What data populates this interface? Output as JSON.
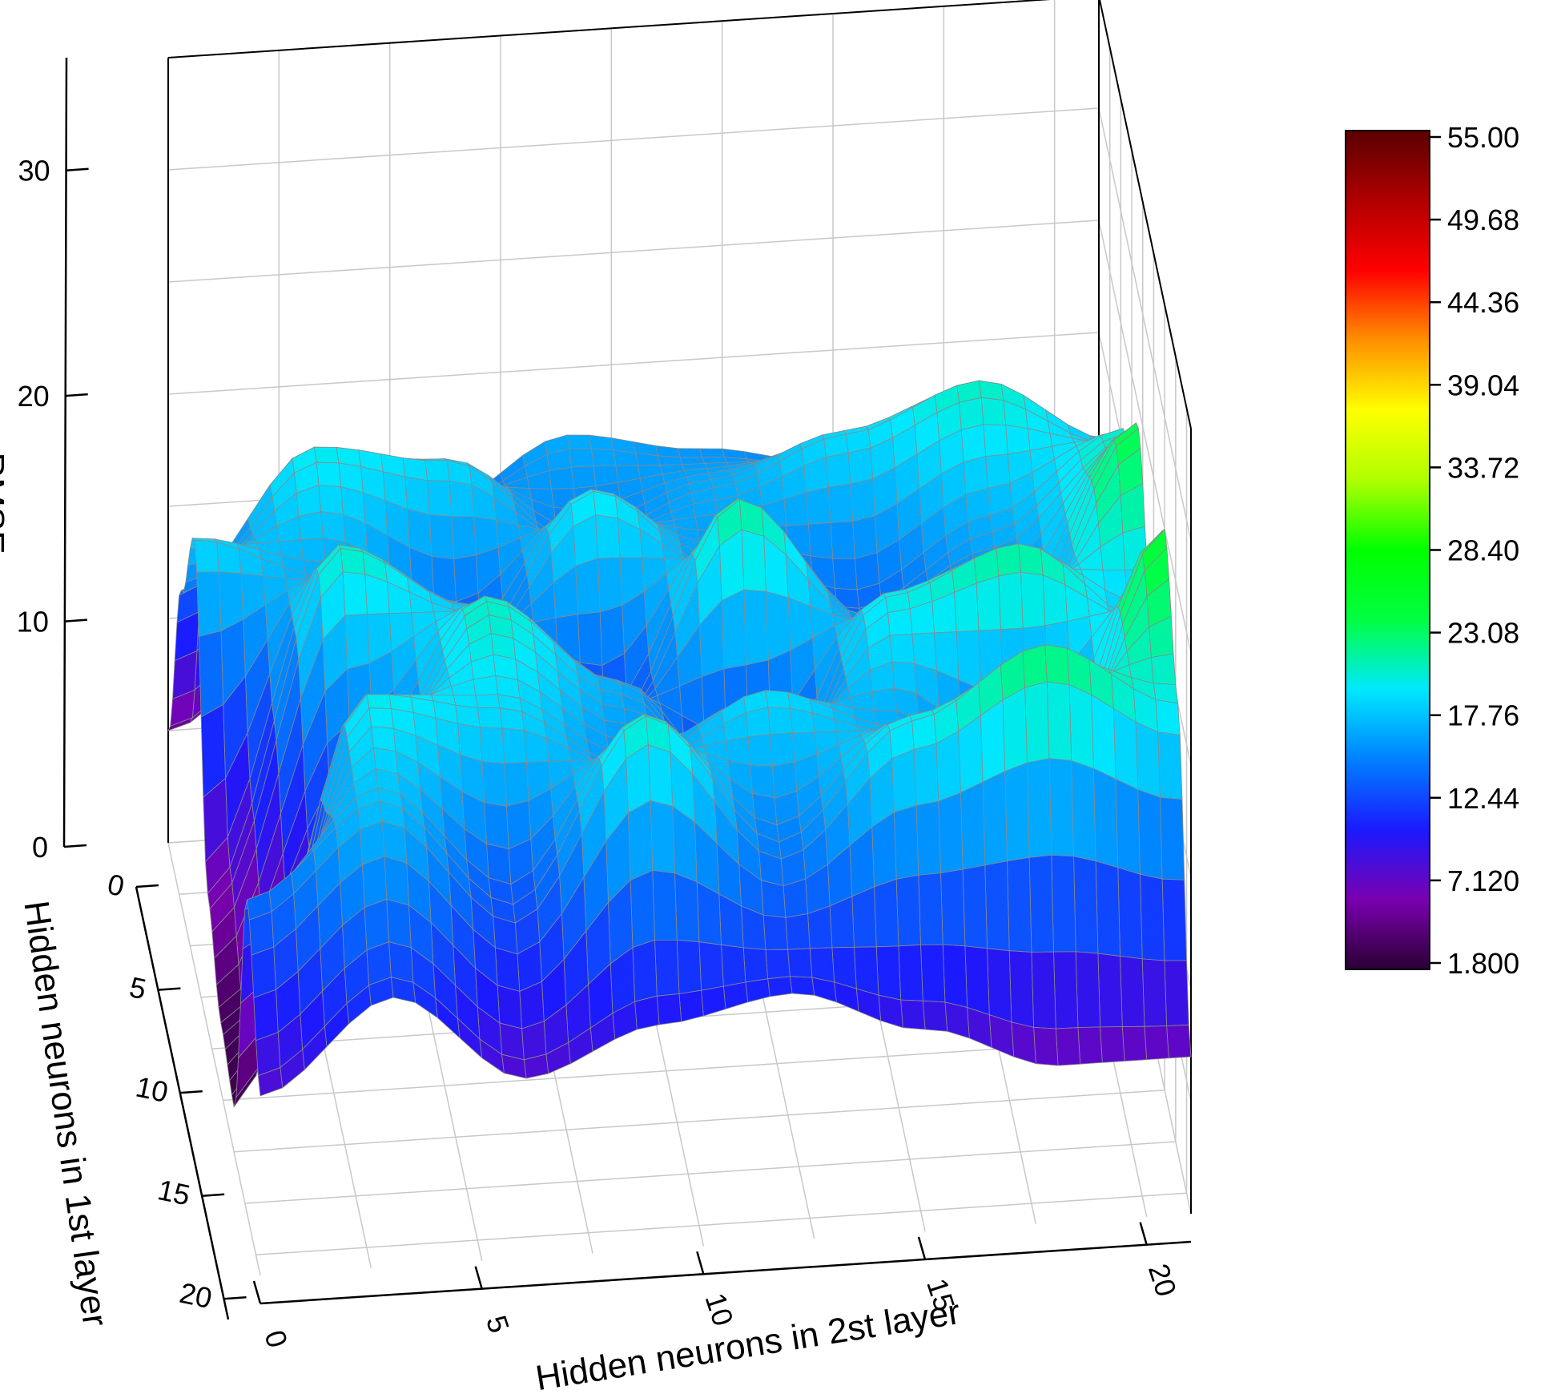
{
  "chart_data": {
    "type": "surface3d",
    "title": "",
    "xlabel": "Hidden neurons in 2st layer",
    "ylabel": "Hidden neurons in 1st layer",
    "zlabel": "RMSE",
    "x_ticks": [
      "0",
      "5",
      "10",
      "15",
      "20"
    ],
    "y_ticks": [
      "0",
      "5",
      "10",
      "15",
      "20"
    ],
    "z_ticks": [
      "0",
      "10",
      "20",
      "30"
    ],
    "xlim": [
      0,
      21
    ],
    "ylim": [
      0,
      21
    ],
    "zlim": [
      0,
      35
    ],
    "colorbar": {
      "ticks": [
        "55.00",
        "49.68",
        "44.36",
        "39.04",
        "33.72",
        "28.40",
        "23.08",
        "17.76",
        "12.44",
        "7.120",
        "1.800"
      ],
      "min": 1.8,
      "max": 55.0,
      "colors": [
        "#2a0033",
        "#7a00b0",
        "#1a1aff",
        "#0080ff",
        "#00e8ff",
        "#00ff40",
        "#00ff00",
        "#b0ff00",
        "#ffff00",
        "#ff9000",
        "#ff0000",
        "#b00000",
        "#5a0000"
      ]
    },
    "x": [
      0,
      3,
      6,
      9,
      12,
      15,
      18,
      21
    ],
    "y": [
      0,
      3,
      6,
      9,
      12,
      15,
      18,
      21
    ],
    "z": [
      [
        5,
        9,
        14,
        17,
        16,
        15,
        13,
        12
      ],
      [
        14,
        20,
        19,
        15,
        17,
        19,
        21,
        18
      ],
      [
        19,
        17,
        13,
        20,
        16,
        14,
        17,
        21
      ],
      [
        6,
        21,
        18,
        12,
        22,
        16,
        14,
        24
      ],
      [
        3,
        13,
        21,
        17,
        10,
        20,
        22,
        18
      ],
      [
        2,
        20,
        19,
        16,
        19,
        17,
        11,
        25
      ],
      [
        14,
        18,
        13,
        21,
        15,
        20,
        23,
        20
      ],
      [
        8,
        12,
        8,
        10,
        11,
        9,
        7,
        7
      ]
    ],
    "grid": true
  }
}
